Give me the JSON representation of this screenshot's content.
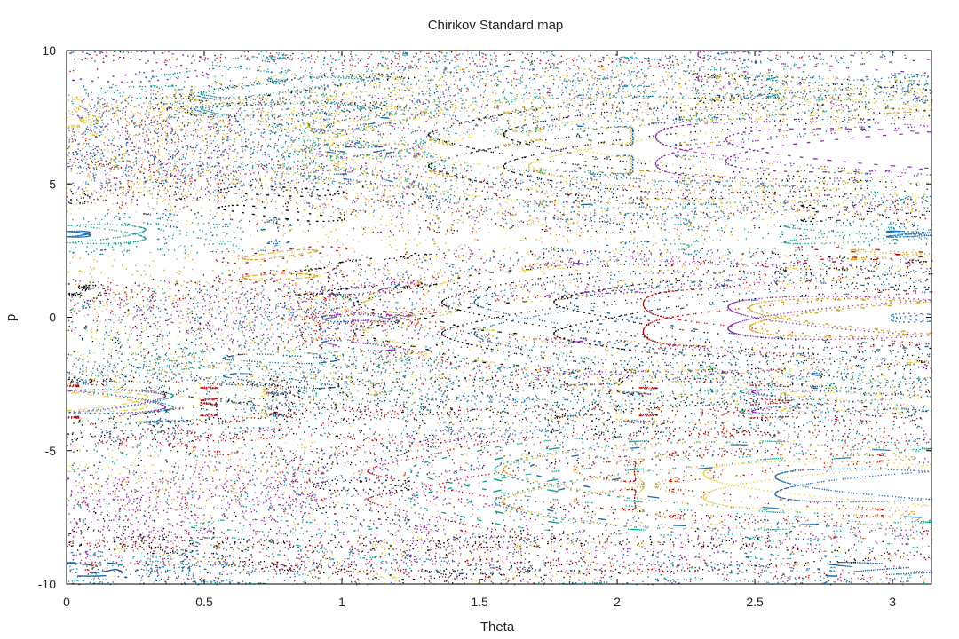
{
  "chart_data": {
    "type": "scatter",
    "title": "Chirikov Standard map",
    "xlabel": "Theta",
    "ylabel": "p",
    "xlim": [
      0,
      3.14159
    ],
    "ylim": [
      -10,
      10
    ],
    "x_ticks": [
      "0",
      "0.5",
      "1",
      "1.5",
      "2",
      "2.5",
      "3"
    ],
    "y_ticks": [
      "-10",
      "-5",
      "0",
      "5",
      "10"
    ],
    "grid": false,
    "legend": "none",
    "series_colors": [
      "#c00000",
      "#8a1fb5",
      "#d4a017",
      "#009e8a",
      "#0a5c99",
      "#000000",
      "#e4cc33",
      "#1f6fb5"
    ]
  }
}
